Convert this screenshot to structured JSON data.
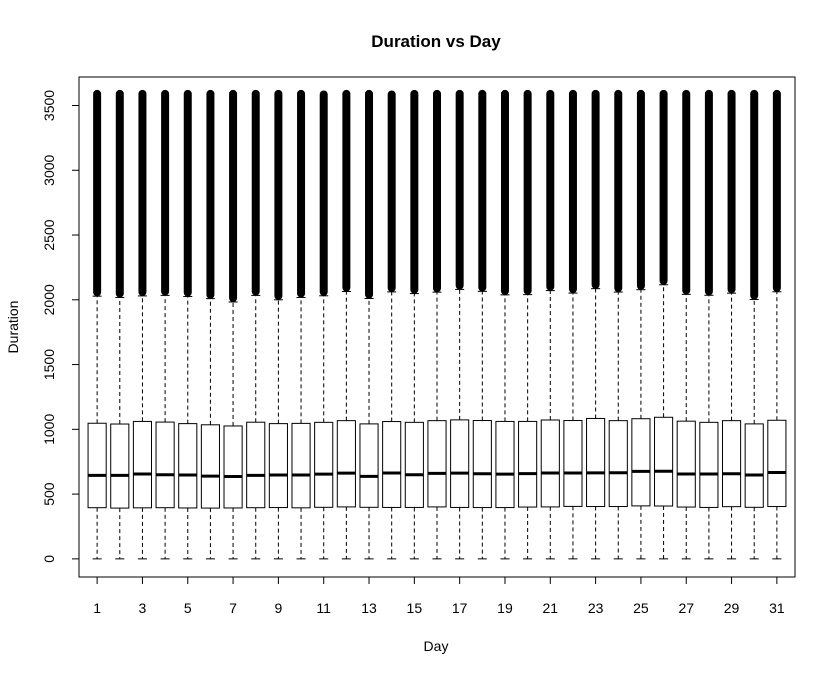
{
  "chart_data": {
    "type": "boxplot",
    "title": "Duration vs Day",
    "xlabel": "Day",
    "ylabel": "Duration",
    "ylim": [
      -140,
      3720
    ],
    "x_ticks": [
      1,
      3,
      5,
      7,
      9,
      11,
      13,
      15,
      17,
      19,
      21,
      23,
      25,
      27,
      29,
      31
    ],
    "y_ticks": [
      0,
      500,
      1000,
      1500,
      2000,
      2500,
      3000,
      3500
    ],
    "grid": false,
    "categories": [
      1,
      2,
      3,
      4,
      5,
      6,
      7,
      8,
      9,
      10,
      11,
      12,
      13,
      14,
      15,
      16,
      17,
      18,
      19,
      20,
      21,
      22,
      23,
      24,
      25,
      26,
      27,
      28,
      29,
      30,
      31
    ],
    "whisker_low": [
      0,
      0,
      0,
      0,
      0,
      0,
      0,
      0,
      0,
      0,
      0,
      0,
      0,
      0,
      0,
      0,
      0,
      0,
      0,
      0,
      0,
      0,
      0,
      0,
      0,
      0,
      0,
      0,
      0,
      0,
      0
    ],
    "q1": [
      395,
      392,
      394,
      395,
      393,
      392,
      393,
      395,
      396,
      394,
      398,
      401,
      398,
      397,
      397,
      401,
      397,
      396,
      396,
      400,
      401,
      405,
      404,
      404,
      409,
      408,
      400,
      397,
      403,
      398,
      404
    ],
    "median": [
      645,
      645,
      655,
      649,
      647,
      639,
      636,
      645,
      647,
      647,
      654,
      662,
      637,
      663,
      649,
      660,
      662,
      657,
      654,
      658,
      663,
      663,
      664,
      665,
      675,
      676,
      655,
      655,
      657,
      647,
      667
    ],
    "q3": [
      1047,
      1041,
      1061,
      1056,
      1044,
      1035,
      1026,
      1055,
      1044,
      1046,
      1054,
      1067,
      1042,
      1060,
      1054,
      1067,
      1073,
      1068,
      1061,
      1061,
      1072,
      1068,
      1084,
      1067,
      1082,
      1093,
      1063,
      1054,
      1067,
      1042,
      1070
    ],
    "whisker_high": [
      2028,
      2018,
      2030,
      2034,
      2025,
      2009,
      1983,
      2034,
      2000,
      2018,
      2031,
      2064,
      2010,
      2061,
      2048,
      2059,
      2080,
      2065,
      2038,
      2040,
      2071,
      2052,
      2086,
      2060,
      2078,
      2116,
      2042,
      2035,
      2051,
      2002,
      2062
    ],
    "max_outlier": [
      3590,
      3590,
      3590,
      3590,
      3590,
      3590,
      3590,
      3590,
      3590,
      3590,
      3585,
      3590,
      3590,
      3585,
      3590,
      3590,
      3590,
      3590,
      3590,
      3590,
      3590,
      3590,
      3590,
      3590,
      3590,
      3590,
      3590,
      3590,
      3590,
      3590,
      3590
    ]
  }
}
